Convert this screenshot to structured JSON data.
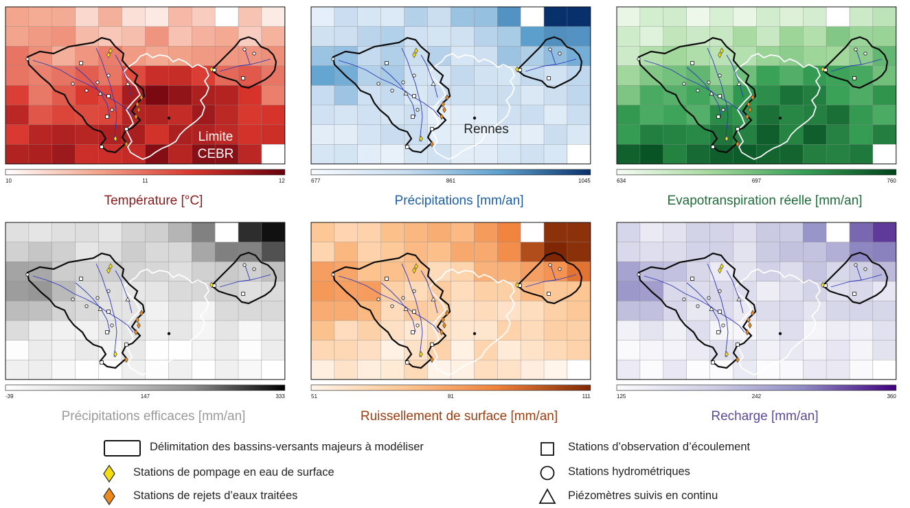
{
  "panels": [
    {
      "id": "temperature",
      "title": "Température [°C]",
      "title_color": "#8b1a1a",
      "colors": [
        "#ffffff",
        "#f3a48c",
        "#d8352c",
        "#67000d"
      ],
      "scale": {
        "min": "10",
        "mid": "11",
        "max": "12"
      },
      "labels": {
        "limit_line1": "Limite",
        "limit_line2": "CEBR"
      }
    },
    {
      "id": "precipitations",
      "title": "Précipitations [mm/an]",
      "title_color": "#1f5fa6",
      "colors": [
        "#f7fbff",
        "#c9ddf0",
        "#5fa2d0",
        "#08306b"
      ],
      "scale": {
        "min": "677",
        "mid": "861",
        "max": "1045"
      },
      "labels": {
        "city": "Rennes"
      }
    },
    {
      "id": "evapotranspiration",
      "title": "Evapotranspiration réelle [mm/an]",
      "title_color": "#1f6b3a",
      "colors": [
        "#f7fcf5",
        "#a5d99e",
        "#37a055",
        "#00441b"
      ],
      "scale": {
        "min": "634",
        "mid": "697",
        "max": "760"
      }
    },
    {
      "id": "precipitations-efficaces",
      "title": "Précipitations efficaces [mm/an]",
      "title_color": "#9a9a9a",
      "colors": [
        "#ffffff",
        "#d4d4d4",
        "#8f8f8f",
        "#000000"
      ],
      "scale": {
        "min": "-39",
        "mid": "147",
        "max": "333"
      }
    },
    {
      "id": "ruissellement",
      "title": "Ruissellement de surface [mm/an]",
      "title_color": "#9c3d0f",
      "colors": [
        "#fff5eb",
        "#fdc693",
        "#f0803a",
        "#7f2704"
      ],
      "scale": {
        "min": "51",
        "mid": "81",
        "max": "111"
      }
    },
    {
      "id": "recharge",
      "title": "Recharge [mm/an]",
      "title_color": "#5a4a9a",
      "colors": [
        "#fcfbfd",
        "#cfcfe6",
        "#8f8bc3",
        "#3f007d"
      ],
      "scale": {
        "min": "125",
        "mid": "242",
        "max": "360"
      }
    }
  ],
  "legend": {
    "basin": "Délimitation des bassins-versants majeurs à modéliser",
    "pumping": "Stations de pompage en eau de surface",
    "discharge": "Stations de rejets d’eaux traitées",
    "flow_obs": "Stations d’observation d’écoulement",
    "hydro": "Stations hydrométriques",
    "piezo": "Piézomètres suivis en continu",
    "pumping_color": "#f5dd12",
    "discharge_color": "#ee8a1c"
  }
}
